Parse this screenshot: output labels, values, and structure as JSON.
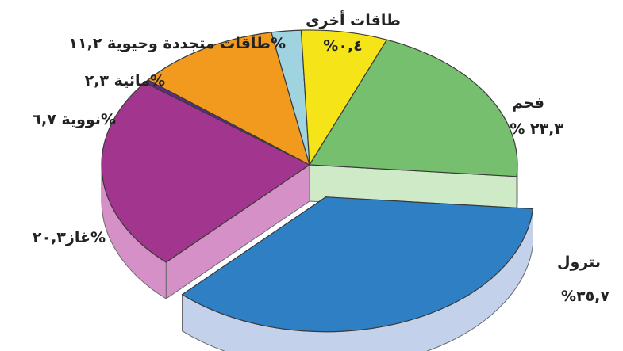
{
  "chart_data": {
    "type": "pie",
    "style": "3d exploded",
    "slices": [
      {
        "name": "بترول",
        "value": 35.7,
        "label": "%٣٥,٧",
        "color": "#2f7fc4",
        "side_color": "#c3d1ea"
      },
      {
        "name": "فحم",
        "value": 23.3,
        "label": "% ٢٣,٣",
        "color": "#a2358e",
        "side_color": "#d490c7"
      },
      {
        "name": "طاقات أخرى",
        "value": 0.4,
        "label": "%٠,٤",
        "color": "#5b2a8a",
        "side_color": "#9a86b8"
      },
      {
        "name": "طاقات متجددة وحيوية",
        "value": 11.2,
        "label": "%١١,٢",
        "color": "#f29a1e",
        "side_color": "#f6c884"
      },
      {
        "name": "مائية",
        "value": 2.3,
        "label": "%٢,٣",
        "color": "#9fd3df",
        "side_color": "#cfe8ee"
      },
      {
        "name": "نووية",
        "value": 6.7,
        "label": "%٦,٧",
        "color": "#f5e418",
        "side_color": "#f7ef98"
      },
      {
        "name": "غاز",
        "value": 20.3,
        "label": "%٢٠,٣",
        "color": "#76bf6e",
        "side_color": "#cfeac7"
      }
    ],
    "texts": {
      "other": "طاقات أخرى",
      "other_pct": "%٠,٤",
      "renewable": "طاقات متجددة وحيوية ١١,٢%",
      "hydro": "مائية ٢,٣%",
      "nuclear": "نووية ٦,٧%",
      "coal": "فحم",
      "coal_pct": "% ٢٣,٣",
      "gas": "غاز٢٠,٣%",
      "oil": "بترول",
      "oil_pct": "%٣٥,٧"
    }
  }
}
